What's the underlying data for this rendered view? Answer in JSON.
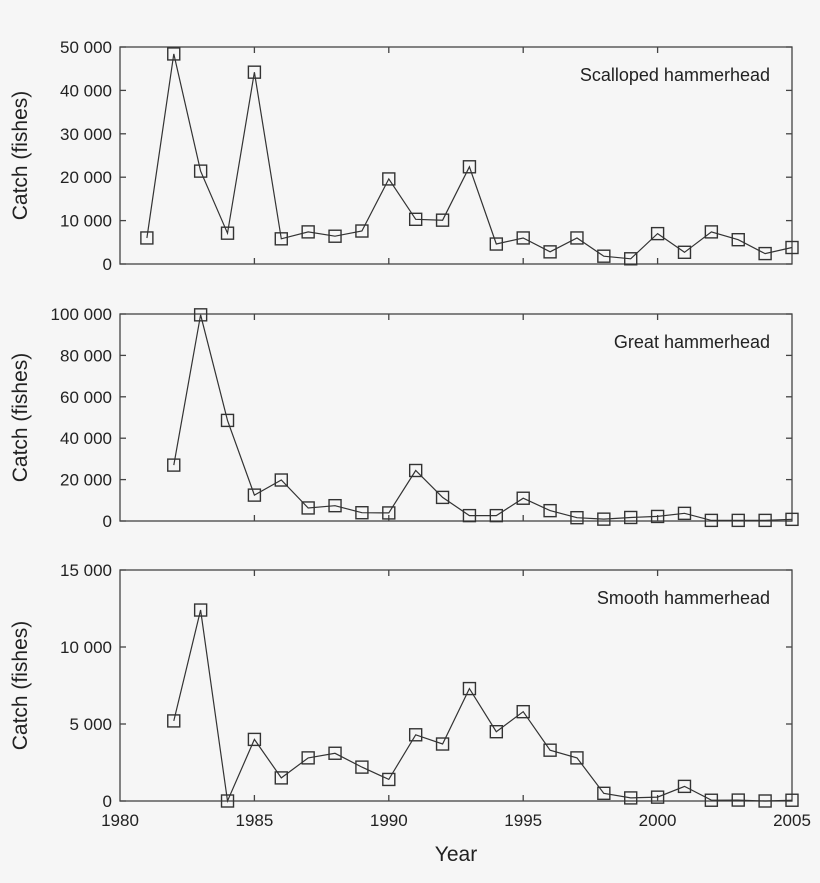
{
  "chart_data": [
    {
      "type": "line",
      "title": "Scalloped hammerhead",
      "xlabel": "Year",
      "ylabel": "Catch (fishes)",
      "xlim": [
        1980,
        2005
      ],
      "ylim": [
        0,
        50000
      ],
      "yticks": [
        0,
        10000,
        20000,
        30000,
        40000,
        50000
      ],
      "ytick_labels": [
        "0",
        "10 000",
        "20 000",
        "30 000",
        "40 000",
        "50 000"
      ],
      "legend": "top-right",
      "marker": "square",
      "x": [
        1981,
        1982,
        1983,
        1984,
        1985,
        1986,
        1987,
        1988,
        1989,
        1990,
        1991,
        1992,
        1993,
        1994,
        1995,
        1996,
        1997,
        1998,
        1999,
        2000,
        2001,
        2002,
        2003,
        2004,
        2005
      ],
      "y": [
        6000,
        48400,
        21400,
        7100,
        44200,
        5800,
        7400,
        6400,
        7600,
        19600,
        10300,
        10100,
        22400,
        4600,
        6000,
        2800,
        6000,
        1800,
        1200,
        7000,
        2700,
        7400,
        5600,
        2400,
        3800
      ]
    },
    {
      "type": "line",
      "title": "Great hammerhead",
      "xlabel": "Year",
      "ylabel": "Catch (fishes)",
      "xlim": [
        1980,
        2005
      ],
      "ylim": [
        0,
        100000
      ],
      "yticks": [
        0,
        20000,
        40000,
        60000,
        80000,
        100000
      ],
      "ytick_labels": [
        "0",
        "20 000",
        "40 000",
        "60 000",
        "80 000",
        "100 000"
      ],
      "legend": "top-right",
      "marker": "square",
      "x": [
        1982,
        1983,
        1984,
        1985,
        1986,
        1987,
        1988,
        1989,
        1990,
        1991,
        1992,
        1993,
        1994,
        1995,
        1996,
        1997,
        1998,
        1999,
        2000,
        2001,
        2002,
        2003,
        2004,
        2005
      ],
      "y": [
        27000,
        99600,
        48600,
        12500,
        19800,
        6300,
        7400,
        4000,
        3900,
        24400,
        11400,
        2600,
        2600,
        11000,
        5000,
        1600,
        900,
        1700,
        2200,
        3700,
        300,
        300,
        300,
        800
      ]
    },
    {
      "type": "line",
      "title": "Smooth hammerhead",
      "xlabel": "Year",
      "ylabel": "Catch (fishes)",
      "xlim": [
        1980,
        2005
      ],
      "ylim": [
        0,
        15000
      ],
      "yticks": [
        0,
        5000,
        10000,
        15000
      ],
      "ytick_labels": [
        "0",
        "5 000",
        "10 000",
        "15 000"
      ],
      "xticks": [
        1980,
        1985,
        1990,
        1995,
        2000,
        2005
      ],
      "xtick_labels": [
        "1980",
        "1985",
        "1990",
        "1995",
        "2000",
        "2005"
      ],
      "legend": "top-right",
      "marker": "square",
      "x": [
        1982,
        1983,
        1984,
        1985,
        1986,
        1987,
        1988,
        1989,
        1990,
        1991,
        1992,
        1993,
        1994,
        1995,
        1996,
        1997,
        1998,
        1999,
        2000,
        2001,
        2002,
        2003,
        2004,
        2005
      ],
      "y": [
        5200,
        12400,
        0,
        4000,
        1500,
        2800,
        3100,
        2200,
        1400,
        4300,
        3700,
        7300,
        4500,
        5800,
        3300,
        2800,
        500,
        200,
        250,
        950,
        50,
        60,
        0,
        50
      ]
    }
  ]
}
